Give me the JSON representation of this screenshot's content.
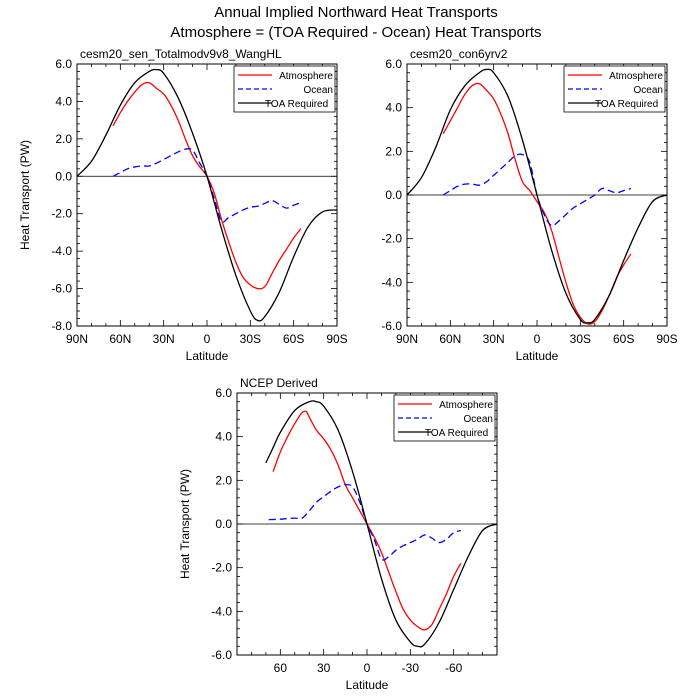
{
  "figure": {
    "title_line1": "Annual Implied Northward Heat Transports",
    "title_line2": "Atmosphere = (TOA Required - Ocean) Heat Transports"
  },
  "chart_data": [
    {
      "type": "line",
      "title": "cesm20_sen_Totalmodv9v8_WangHL",
      "xlabel": "Latitude",
      "ylabel": "Heat Transport (PW)",
      "xlim": [
        90,
        -90
      ],
      "ylim": [
        -8,
        6
      ],
      "xticks": [
        90,
        60,
        30,
        0,
        -30,
        -60,
        -90
      ],
      "xtick_labels": [
        "90N",
        "60N",
        "30N",
        "0",
        "30S",
        "60S",
        "90S"
      ],
      "yticks": [
        -8,
        -6,
        -4,
        -2,
        0,
        2,
        4,
        6
      ],
      "ytick_labels": [
        "-8.0",
        "-6.0",
        "-4.0",
        "-2.0",
        "0.0",
        "2.0",
        "4.0",
        "6.0"
      ],
      "legend": [
        "Atmosphere",
        "Ocean",
        "TOA Required"
      ],
      "series": [
        {
          "name": "Atmosphere",
          "color": "#ff0000",
          "dash": "solid",
          "x": [
            65,
            60,
            55,
            50,
            45,
            40,
            35,
            30,
            25,
            20,
            15,
            10,
            5,
            0,
            -5,
            -10,
            -15,
            -20,
            -25,
            -30,
            -35,
            -40,
            -45,
            -50,
            -55,
            -60,
            -65
          ],
          "y": [
            2.7,
            3.4,
            4.0,
            4.5,
            4.9,
            5.0,
            4.7,
            4.4,
            3.8,
            3.0,
            2.0,
            1.1,
            0.5,
            0.0,
            -0.9,
            -2.3,
            -3.5,
            -4.6,
            -5.4,
            -5.8,
            -6.0,
            -5.9,
            -5.2,
            -4.5,
            -3.9,
            -3.3,
            -2.8
          ]
        },
        {
          "name": "Ocean",
          "color": "#0000ff",
          "dash": "dashed",
          "x": [
            65,
            60,
            55,
            50,
            45,
            40,
            35,
            30,
            25,
            20,
            15,
            10,
            5,
            0,
            -5,
            -10,
            -15,
            -20,
            -25,
            -30,
            -35,
            -40,
            -45,
            -50,
            -55,
            -60,
            -65
          ],
          "y": [
            0.0,
            0.2,
            0.4,
            0.5,
            0.55,
            0.55,
            0.7,
            0.9,
            1.1,
            1.3,
            1.45,
            1.4,
            0.7,
            0.0,
            -1.2,
            -2.4,
            -2.2,
            -2.0,
            -1.8,
            -1.65,
            -1.6,
            -1.45,
            -1.3,
            -1.5,
            -1.7,
            -1.55,
            -1.4
          ]
        },
        {
          "name": "TOA Required",
          "color": "#000000",
          "dash": "solid",
          "x": [
            90,
            80,
            70,
            60,
            50,
            40,
            35,
            30,
            20,
            10,
            0,
            -10,
            -20,
            -30,
            -35,
            -40,
            -50,
            -60,
            -70,
            -80,
            -90
          ],
          "y": [
            0.0,
            0.8,
            2.2,
            3.8,
            5.0,
            5.6,
            5.7,
            5.5,
            4.2,
            2.3,
            0.0,
            -2.8,
            -5.3,
            -7.2,
            -7.7,
            -7.5,
            -6.2,
            -4.3,
            -2.7,
            -1.9,
            -1.8
          ]
        }
      ]
    },
    {
      "type": "line",
      "title": "cesm20_con6yrv2",
      "xlabel": "Latitude",
      "ylabel": "",
      "xlim": [
        90,
        -90
      ],
      "ylim": [
        -6,
        6
      ],
      "xticks": [
        90,
        60,
        30,
        0,
        -30,
        -60,
        -90
      ],
      "xtick_labels": [
        "90N",
        "60N",
        "30N",
        "0",
        "30S",
        "60S",
        "90S"
      ],
      "yticks": [
        -6,
        -4,
        -2,
        0,
        2,
        4,
        6
      ],
      "ytick_labels": [
        "-6.0",
        "-4.0",
        "-2.0",
        "0.0",
        "2.0",
        "4.0",
        "6.0"
      ],
      "legend": [
        "Atmosphere",
        "Ocean",
        "TOA Required"
      ],
      "series": [
        {
          "name": "Atmosphere",
          "color": "#ff0000",
          "dash": "solid",
          "x": [
            65,
            60,
            55,
            50,
            45,
            40,
            35,
            30,
            25,
            20,
            15,
            10,
            5,
            0,
            -5,
            -10,
            -15,
            -20,
            -25,
            -30,
            -35,
            -40,
            -45,
            -50,
            -55,
            -60,
            -65
          ],
          "y": [
            2.8,
            3.4,
            4.0,
            4.6,
            5.0,
            5.1,
            4.8,
            4.4,
            3.7,
            2.8,
            1.6,
            0.6,
            0.2,
            -0.3,
            -0.8,
            -1.6,
            -2.8,
            -4.0,
            -5.0,
            -5.6,
            -5.9,
            -5.8,
            -5.3,
            -4.6,
            -3.8,
            -3.2,
            -2.7
          ]
        },
        {
          "name": "Ocean",
          "color": "#0000ff",
          "dash": "dashed",
          "x": [
            65,
            60,
            55,
            50,
            45,
            40,
            35,
            30,
            25,
            20,
            15,
            10,
            5,
            0,
            -5,
            -10,
            -15,
            -20,
            -25,
            -30,
            -35,
            -40,
            -45,
            -50,
            -55,
            -60,
            -65
          ],
          "y": [
            0.0,
            0.2,
            0.4,
            0.5,
            0.5,
            0.45,
            0.6,
            0.9,
            1.2,
            1.5,
            1.8,
            1.85,
            1.5,
            0.0,
            -0.9,
            -1.4,
            -1.2,
            -0.9,
            -0.6,
            -0.4,
            -0.2,
            0.0,
            0.3,
            0.2,
            0.1,
            0.2,
            0.3
          ]
        },
        {
          "name": "TOA Required",
          "color": "#000000",
          "dash": "solid",
          "x": [
            90,
            80,
            70,
            60,
            50,
            40,
            35,
            30,
            20,
            10,
            0,
            -10,
            -20,
            -30,
            -35,
            -40,
            -50,
            -60,
            -70,
            -80,
            -90
          ],
          "y": [
            0.0,
            0.8,
            2.2,
            3.9,
            5.0,
            5.6,
            5.75,
            5.6,
            4.5,
            2.5,
            0.0,
            -2.5,
            -4.5,
            -5.7,
            -5.85,
            -5.7,
            -4.6,
            -3.0,
            -1.5,
            -0.3,
            0.0
          ]
        }
      ]
    },
    {
      "type": "line",
      "title": "NCEP Derived",
      "xlabel": "Latitude",
      "ylabel": "Heat Transport (PW)",
      "xlim": [
        90,
        -90
      ],
      "ylim": [
        -6,
        6
      ],
      "xticks": [
        60,
        30,
        0,
        -30,
        -60
      ],
      "xtick_labels": [
        "60",
        "30",
        "0",
        "-30",
        "-60"
      ],
      "yticks": [
        -6,
        -4,
        -2,
        0,
        2,
        4,
        6
      ],
      "ytick_labels": [
        "-6.0",
        "-4.0",
        "-2.0",
        "0.0",
        "2.0",
        "4.0",
        "6.0"
      ],
      "legend": [
        "Atmosphere",
        "Ocean",
        "TOA Required"
      ],
      "series": [
        {
          "name": "Atmosphere",
          "color": "#ff0000",
          "dash": "solid",
          "x": [
            65,
            60,
            55,
            50,
            45,
            42,
            40,
            35,
            30,
            25,
            20,
            15,
            10,
            5,
            0,
            -5,
            -10,
            -15,
            -20,
            -25,
            -30,
            -35,
            -40,
            -45,
            -50,
            -55,
            -60,
            -65
          ],
          "y": [
            2.4,
            3.3,
            4.0,
            4.6,
            5.1,
            5.15,
            4.9,
            4.3,
            3.9,
            3.4,
            2.7,
            1.8,
            1.2,
            0.6,
            0.0,
            -0.6,
            -1.3,
            -2.2,
            -3.1,
            -3.9,
            -4.4,
            -4.7,
            -4.85,
            -4.6,
            -3.9,
            -3.2,
            -2.4,
            -1.8
          ]
        },
        {
          "name": "Ocean",
          "color": "#0000ff",
          "dash": "dashed",
          "x": [
            68,
            60,
            55,
            50,
            45,
            40,
            35,
            30,
            25,
            20,
            15,
            10,
            5,
            0,
            -5,
            -10,
            -15,
            -20,
            -25,
            -30,
            -35,
            -40,
            -45,
            -50,
            -55,
            -60,
            -65
          ],
          "y": [
            0.2,
            0.22,
            0.25,
            0.27,
            0.27,
            0.6,
            1.0,
            1.25,
            1.5,
            1.7,
            1.8,
            1.7,
            1.0,
            0.0,
            -0.7,
            -1.6,
            -1.5,
            -1.2,
            -1.0,
            -0.85,
            -0.7,
            -0.5,
            -0.65,
            -0.85,
            -0.7,
            -0.4,
            -0.3
          ]
        },
        {
          "name": "TOA Required",
          "color": "#000000",
          "dash": "solid",
          "x": [
            70,
            65,
            60,
            50,
            40,
            35,
            30,
            20,
            10,
            0,
            -10,
            -20,
            -30,
            -35,
            -40,
            -50,
            -60,
            -70,
            -80,
            -90
          ],
          "y": [
            2.8,
            3.5,
            4.2,
            5.2,
            5.6,
            5.6,
            5.4,
            4.3,
            2.4,
            0.0,
            -2.5,
            -4.4,
            -5.4,
            -5.6,
            -5.5,
            -4.5,
            -3.0,
            -1.5,
            -0.3,
            0.0
          ]
        }
      ]
    }
  ]
}
